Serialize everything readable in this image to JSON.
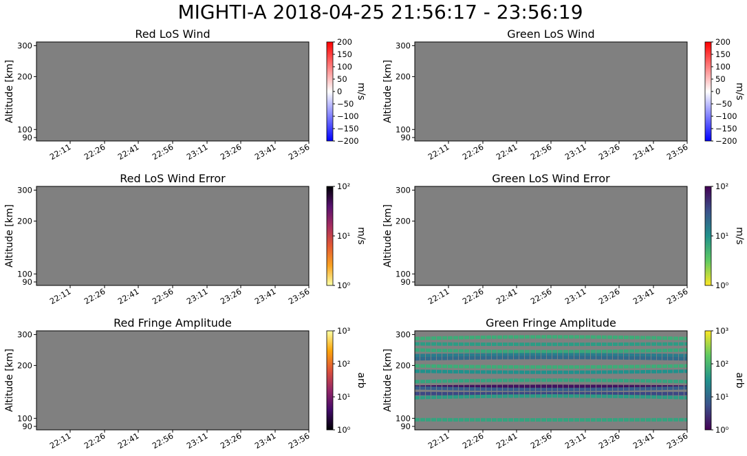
{
  "title": "MIGHTI-A  2018-04-25 21:56:17 - 23:56:19",
  "chart_data": [
    {
      "type": "heatmap",
      "title": "Red LoS Wind",
      "ylabel": "Altitude [km]",
      "ytick_values": [
        90,
        100,
        200,
        300
      ],
      "ytick_labels": [
        "90",
        "100",
        "200",
        "300"
      ],
      "xtick_labels": [
        "22:11",
        "22:26",
        "22:41",
        "22:56",
        "23:11",
        "23:26",
        "23:41",
        "23:56"
      ],
      "data": "no valid data (grey fill)",
      "colorbar": {
        "label": "m/s",
        "scale": "linear",
        "range": [
          -200,
          200
        ],
        "ticks": [
          "200",
          "150",
          "100",
          "50",
          "0",
          "−50",
          "−100",
          "−150",
          "−200"
        ],
        "colormap": "bwr"
      }
    },
    {
      "type": "heatmap",
      "title": "Green LoS Wind",
      "ylabel": "Altitude [km]",
      "ytick_values": [
        90,
        100,
        200,
        300
      ],
      "ytick_labels": [
        "90",
        "100",
        "200",
        "300"
      ],
      "xtick_labels": [
        "22:11",
        "22:26",
        "22:41",
        "22:56",
        "23:11",
        "23:26",
        "23:41",
        "23:56"
      ],
      "data": "no valid data (grey fill)",
      "colorbar": {
        "label": "m/s",
        "scale": "linear",
        "range": [
          -200,
          200
        ],
        "ticks": [
          "200",
          "150",
          "100",
          "50",
          "0",
          "−50",
          "−100",
          "−150",
          "−200"
        ],
        "colormap": "bwr"
      }
    },
    {
      "type": "heatmap",
      "title": "Red LoS Wind Error",
      "ylabel": "Altitude [km]",
      "ytick_values": [
        90,
        100,
        200,
        300
      ],
      "ytick_labels": [
        "90",
        "100",
        "200",
        "300"
      ],
      "xtick_labels": [
        "22:11",
        "22:26",
        "22:41",
        "22:56",
        "23:11",
        "23:26",
        "23:41",
        "23:56"
      ],
      "data": "no valid data (grey fill)",
      "colorbar": {
        "label": "m/s",
        "scale": "log",
        "range": [
          1,
          100
        ],
        "ticks": [
          "10²",
          "10¹",
          "10⁰"
        ],
        "colormap": "inferno_r"
      }
    },
    {
      "type": "heatmap",
      "title": "Green LoS Wind Error",
      "ylabel": "Altitude [km]",
      "ytick_values": [
        90,
        100,
        200,
        300
      ],
      "ytick_labels": [
        "90",
        "100",
        "200",
        "300"
      ],
      "xtick_labels": [
        "22:11",
        "22:26",
        "22:41",
        "22:56",
        "23:11",
        "23:26",
        "23:41",
        "23:56"
      ],
      "data": "no valid data (grey fill)",
      "colorbar": {
        "label": "m/s",
        "scale": "log",
        "range": [
          1,
          100
        ],
        "ticks": [
          "10²",
          "10¹",
          "10⁰"
        ],
        "colormap": "viridis_r"
      }
    },
    {
      "type": "heatmap",
      "title": "Red Fringe Amplitude",
      "ylabel": "Altitude [km]",
      "ytick_values": [
        90,
        100,
        200,
        300
      ],
      "ytick_labels": [
        "90",
        "100",
        "200",
        "300"
      ],
      "xtick_labels": [
        "22:11",
        "22:26",
        "22:41",
        "22:56",
        "23:11",
        "23:26",
        "23:41",
        "23:56"
      ],
      "data": "no valid data (grey fill)",
      "colorbar": {
        "label": "arb",
        "scale": "log",
        "range": [
          1,
          1000
        ],
        "ticks": [
          "10³",
          "10²",
          "10¹",
          "10⁰"
        ],
        "colormap": "inferno"
      }
    },
    {
      "type": "heatmap",
      "title": "Green Fringe Amplitude",
      "ylabel": "Altitude [km]",
      "ytick_values": [
        90,
        100,
        200,
        300
      ],
      "ytick_labels": [
        "90",
        "100",
        "200",
        "300"
      ],
      "xtick_labels": [
        "22:11",
        "22:26",
        "22:41",
        "22:56",
        "23:11",
        "23:26",
        "23:41",
        "23:56"
      ],
      "data": "horizontal bands of valid data at fixed altitudes across the full time range",
      "bands_km": [
        {
          "alt": 291,
          "level": 0.62
        },
        {
          "alt": 264,
          "level": 0.55
        },
        {
          "alt": 240,
          "level": 0.6
        },
        {
          "alt": 230,
          "level": 0.42
        },
        {
          "alt": 222,
          "level": 0.35
        },
        {
          "alt": 196,
          "level": 0.62
        },
        {
          "alt": 183,
          "level": 0.5
        },
        {
          "alt": 165,
          "level": 0.58
        },
        {
          "alt": 152,
          "level": 0.05
        },
        {
          "alt": 146,
          "level": 0.3
        },
        {
          "alt": 138,
          "level": 0.22
        },
        {
          "alt": 134,
          "level": 0.55
        },
        {
          "alt": 98,
          "level": 0.58
        }
      ],
      "colorbar": {
        "label": "arb",
        "scale": "log",
        "range": [
          1,
          1000
        ],
        "ticks": [
          "10³",
          "10²",
          "10¹",
          "10⁰"
        ],
        "colormap": "viridis"
      }
    }
  ]
}
